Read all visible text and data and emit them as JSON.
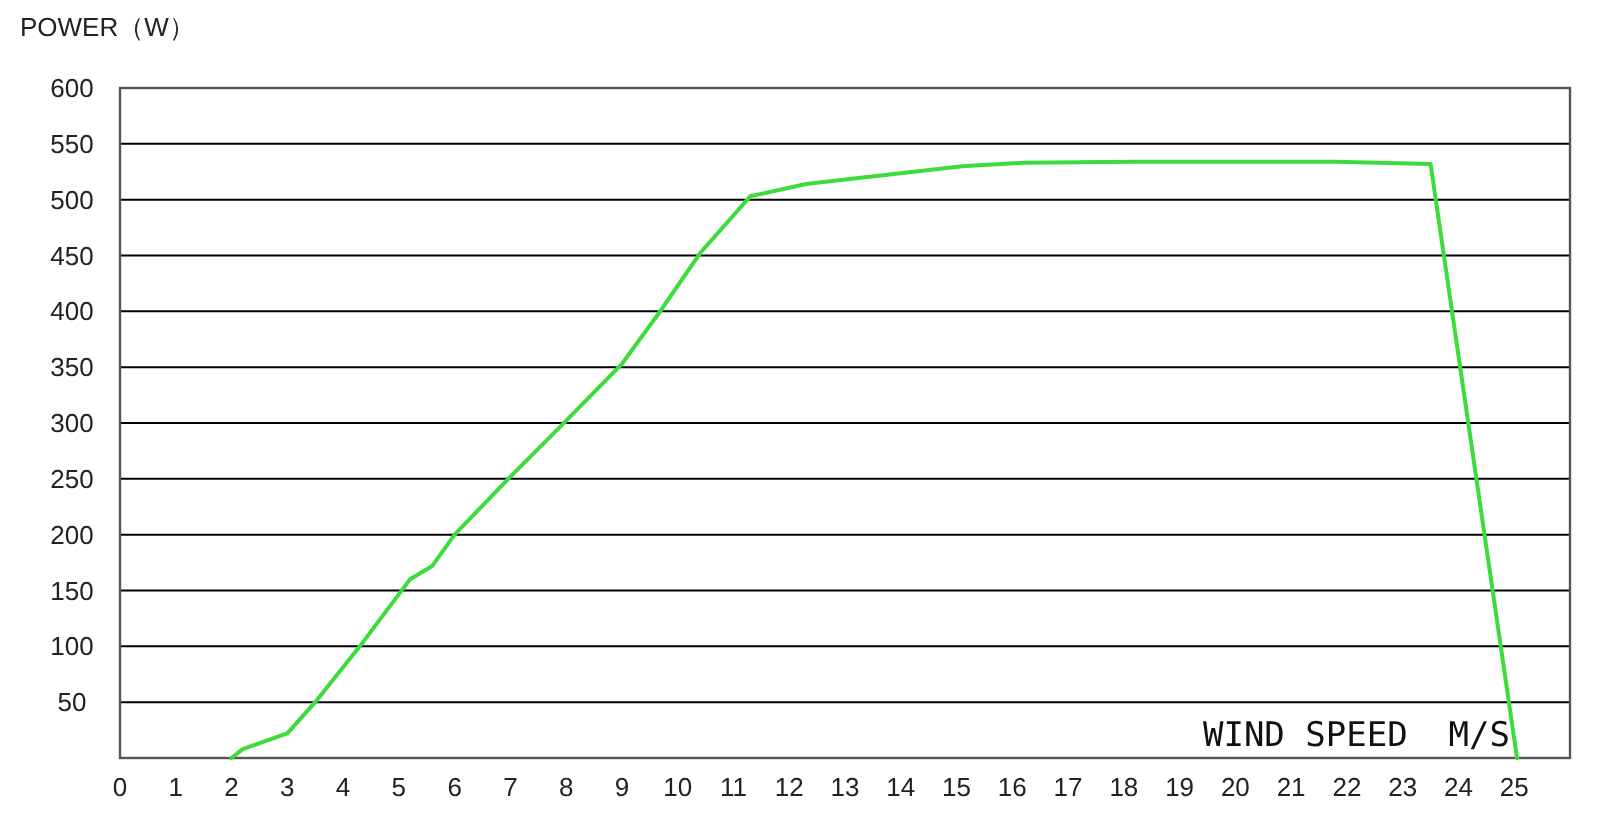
{
  "chart_data": {
    "type": "line",
    "ylabel": "POWER（W）",
    "xlabel": "WIND SPEED  M/S",
    "x": [
      2,
      2.2,
      3,
      3.5,
      4.3,
      5.2,
      5.6,
      6,
      7,
      7.9,
      9,
      9.7,
      10.4,
      11.3,
      12.3,
      15.1,
      16.2,
      18.2,
      21.8,
      23.5,
      25.05
    ],
    "series": [
      {
        "color": "#3ddc3d",
        "values": [
          0,
          8,
          22,
          50,
          100,
          160,
          172,
          200,
          252,
          297,
          353,
          401,
          452,
          503,
          514,
          530,
          533,
          534,
          534,
          532,
          0
        ]
      }
    ],
    "xlim": [
      0,
      26
    ],
    "xticks": [
      0,
      1,
      2,
      3,
      4,
      5,
      6,
      7,
      8,
      9,
      10,
      11,
      12,
      13,
      14,
      15,
      16,
      17,
      18,
      19,
      20,
      21,
      22,
      23,
      24,
      25
    ],
    "ylim": [
      0,
      600
    ],
    "yticks": [
      50,
      100,
      150,
      200,
      250,
      300,
      350,
      400,
      450,
      500,
      550,
      600
    ],
    "grid": "y",
    "marker": "none",
    "line_style": "solid"
  }
}
